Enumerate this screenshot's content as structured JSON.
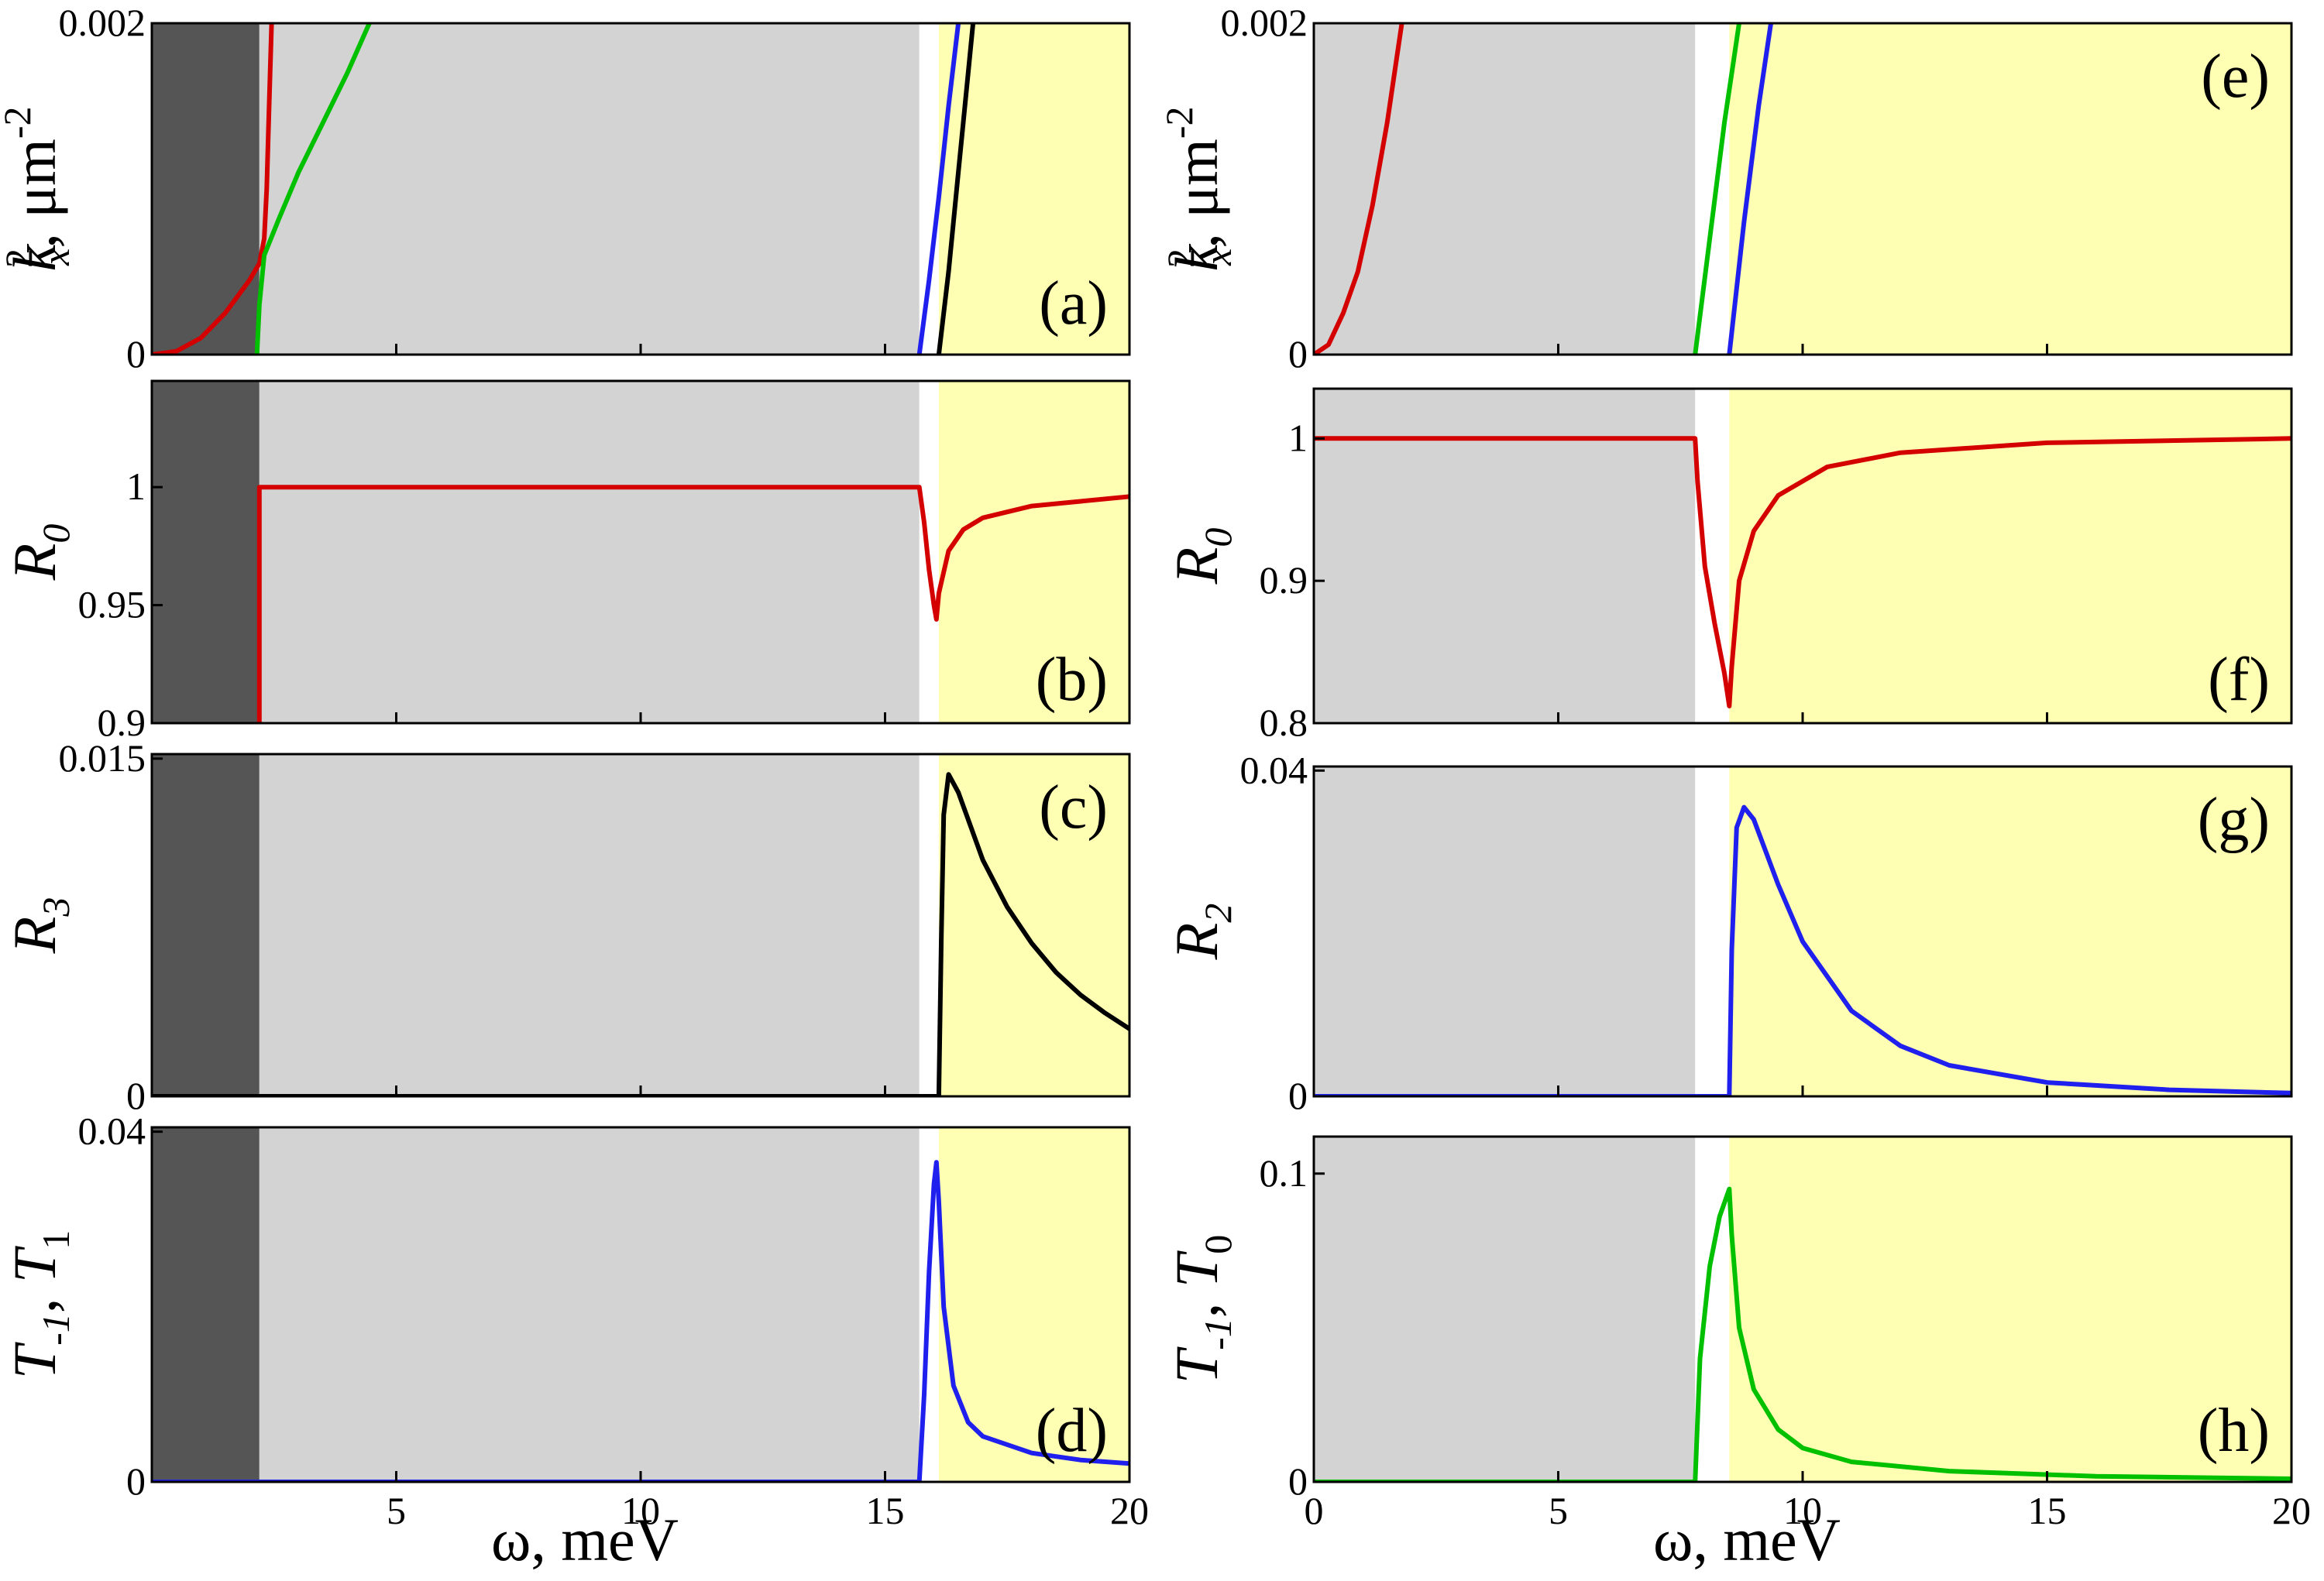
{
  "colors": {
    "dark_region": "#555555",
    "gray_region": "#d3d3d3",
    "yellow_region": "#ffffb4",
    "red": "#d40000",
    "green": "#00c000",
    "blue": "#2020ee",
    "black": "#000000"
  },
  "xlabel": "ω, meV",
  "chart_data": [
    {
      "panel": "(a)",
      "type": "line",
      "ylabel": "k²ₓ, μm⁻²",
      "ylabel_parts": {
        "base": "k",
        "sup": "2",
        "sub": "x",
        "rest": ", μm",
        "rest_sup": "-2"
      },
      "xlim": [
        0,
        20
      ],
      "ylim": [
        0,
        0.002
      ],
      "yticks": [
        0,
        0.002
      ],
      "ytick_labels": [
        "0",
        "0.002"
      ],
      "xticks": [
        5,
        10,
        15,
        20
      ],
      "show_xtick_labels": false,
      "regions": {
        "dark": [
          0,
          2.2
        ],
        "gray": [
          2.2,
          15.7
        ],
        "yellow": [
          16.1,
          20
        ]
      },
      "series": [
        {
          "name": "red",
          "color": "red",
          "points": [
            [
              0,
              0
            ],
            [
              0.5,
              2e-05
            ],
            [
              1.0,
              0.0001
            ],
            [
              1.5,
              0.00025
            ],
            [
              2.0,
              0.00045
            ],
            [
              2.2,
              0.00055
            ],
            [
              2.3,
              0.0007
            ],
            [
              2.35,
              0.001
            ],
            [
              2.4,
              0.0015
            ],
            [
              2.45,
              0.002
            ]
          ]
        },
        {
          "name": "green",
          "color": "green",
          "points": [
            [
              2.15,
              0
            ],
            [
              2.2,
              0.0003
            ],
            [
              2.3,
              0.0006
            ],
            [
              2.6,
              0.00082
            ],
            [
              3.0,
              0.0011
            ],
            [
              3.5,
              0.0014
            ],
            [
              4.0,
              0.0017
            ],
            [
              4.3,
              0.0019
            ],
            [
              4.45,
              0.002
            ]
          ]
        },
        {
          "name": "blue",
          "color": "blue",
          "points": [
            [
              15.7,
              0
            ],
            [
              15.9,
              0.00045
            ],
            [
              16.1,
              0.00095
            ],
            [
              16.3,
              0.0015
            ],
            [
              16.5,
              0.002
            ]
          ]
        },
        {
          "name": "black",
          "color": "black",
          "points": [
            [
              16.1,
              0
            ],
            [
              16.3,
              0.0005
            ],
            [
              16.5,
              0.0011
            ],
            [
              16.7,
              0.0017
            ],
            [
              16.8,
              0.002
            ]
          ]
        }
      ]
    },
    {
      "panel": "(b)",
      "type": "line",
      "ylabel": "R₀",
      "ylabel_parts": {
        "base": "R",
        "sub": "0"
      },
      "xlim": [
        0,
        20
      ],
      "ylim": [
        0.9,
        1.045
      ],
      "yticks": [
        0.9,
        0.95,
        1
      ],
      "ytick_labels": [
        "0.9",
        "0.95",
        "1"
      ],
      "xticks": [
        5,
        10,
        15,
        20
      ],
      "show_xtick_labels": false,
      "regions": {
        "dark": [
          0,
          2.2
        ],
        "gray": [
          2.2,
          15.7
        ],
        "yellow": [
          16.1,
          20
        ]
      },
      "series": [
        {
          "name": "R0",
          "color": "red",
          "points": [
            [
              2.2,
              0.9
            ],
            [
              2.2,
              1.0
            ],
            [
              15.7,
              1.0
            ],
            [
              15.8,
              0.985
            ],
            [
              15.9,
              0.965
            ],
            [
              16.0,
              0.95
            ],
            [
              16.05,
              0.944
            ],
            [
              16.1,
              0.955
            ],
            [
              16.3,
              0.973
            ],
            [
              16.6,
              0.982
            ],
            [
              17.0,
              0.987
            ],
            [
              18.0,
              0.992
            ],
            [
              19.0,
              0.994
            ],
            [
              20.0,
              0.996
            ]
          ]
        }
      ]
    },
    {
      "panel": "(c)",
      "type": "line",
      "ylabel": "R₃",
      "ylabel_parts": {
        "base": "R",
        "sub": "3"
      },
      "xlim": [
        0,
        20
      ],
      "ylim": [
        0,
        0.0152
      ],
      "yticks": [
        0,
        0.015
      ],
      "ytick_labels": [
        "0",
        "0.015"
      ],
      "xticks": [
        5,
        10,
        15,
        20
      ],
      "show_xtick_labels": false,
      "regions": {
        "dark": [
          0,
          2.2
        ],
        "gray": [
          2.2,
          15.7
        ],
        "yellow": [
          16.1,
          20
        ]
      },
      "series": [
        {
          "name": "R3",
          "color": "black",
          "points": [
            [
              0,
              0
            ],
            [
              16.1,
              0
            ],
            [
              16.15,
              0.007
            ],
            [
              16.2,
              0.0125
            ],
            [
              16.3,
              0.0143
            ],
            [
              16.5,
              0.0135
            ],
            [
              17.0,
              0.0105
            ],
            [
              17.5,
              0.0084
            ],
            [
              18.0,
              0.0068
            ],
            [
              18.5,
              0.0055
            ],
            [
              19.0,
              0.0045
            ],
            [
              19.5,
              0.0037
            ],
            [
              20.0,
              0.003
            ]
          ]
        }
      ]
    },
    {
      "panel": "(d)",
      "type": "line",
      "ylabel": "T₋₁, T₁",
      "ylabel_parts": {
        "base": "T",
        "sub": "-1",
        "mid": ", T",
        "sub2": "1"
      },
      "xlim": [
        0,
        20
      ],
      "ylim": [
        0,
        0.0405
      ],
      "yticks": [
        0,
        0.04
      ],
      "ytick_labels": [
        "0",
        "0.04"
      ],
      "xticks": [
        5,
        10,
        15,
        20
      ],
      "show_xtick_labels": true,
      "xtick_labels": [
        "5",
        "10",
        "15",
        "20"
      ],
      "regions": {
        "dark": [
          0,
          2.2
        ],
        "gray": [
          2.2,
          15.7
        ],
        "yellow": [
          16.1,
          20
        ]
      },
      "series": [
        {
          "name": "T",
          "color": "blue",
          "points": [
            [
              0,
              0
            ],
            [
              15.7,
              0
            ],
            [
              15.8,
              0.01
            ],
            [
              15.9,
              0.024
            ],
            [
              16.0,
              0.034
            ],
            [
              16.05,
              0.0365
            ],
            [
              16.1,
              0.032
            ],
            [
              16.2,
              0.02
            ],
            [
              16.4,
              0.011
            ],
            [
              16.7,
              0.0068
            ],
            [
              17.0,
              0.0052
            ],
            [
              18.0,
              0.0033
            ],
            [
              19.0,
              0.0025
            ],
            [
              20.0,
              0.0021
            ]
          ]
        }
      ]
    },
    {
      "panel": "(e)",
      "type": "line",
      "ylabel": "k²ₓ, μm⁻²",
      "ylabel_parts": {
        "base": "k",
        "sup": "2",
        "sub": "x",
        "rest": ", μm",
        "rest_sup": "-2"
      },
      "xlim": [
        0,
        20
      ],
      "ylim": [
        0,
        0.002
      ],
      "yticks": [
        0,
        0.002
      ],
      "ytick_labels": [
        "0",
        "0.002"
      ],
      "xticks": [
        0,
        5,
        10,
        15,
        20
      ],
      "show_xtick_labels": false,
      "regions": {
        "gray": [
          0,
          7.8
        ],
        "yellow": [
          8.5,
          20
        ]
      },
      "series": [
        {
          "name": "red",
          "color": "red",
          "points": [
            [
              0,
              0
            ],
            [
              0.3,
              6e-05
            ],
            [
              0.6,
              0.00025
            ],
            [
              0.9,
              0.0005
            ],
            [
              1.2,
              0.0009
            ],
            [
              1.5,
              0.0014
            ],
            [
              1.8,
              0.002
            ]
          ]
        },
        {
          "name": "green",
          "color": "green",
          "points": [
            [
              7.8,
              0
            ],
            [
              8.1,
              0.0007
            ],
            [
              8.4,
              0.0014
            ],
            [
              8.6,
              0.0018
            ],
            [
              8.7,
              0.002
            ]
          ]
        },
        {
          "name": "blue",
          "color": "blue",
          "points": [
            [
              8.5,
              0
            ],
            [
              8.8,
              0.0008
            ],
            [
              9.1,
              0.0015
            ],
            [
              9.35,
              0.002
            ]
          ]
        }
      ]
    },
    {
      "panel": "(f)",
      "type": "line",
      "ylabel": "R₀",
      "ylabel_parts": {
        "base": "R",
        "sub": "0"
      },
      "xlim": [
        0,
        20
      ],
      "ylim": [
        0.8,
        1.035
      ],
      "yticks": [
        0.8,
        0.9,
        1
      ],
      "ytick_labels": [
        "0.8",
        "0.9",
        "1"
      ],
      "xticks": [
        0,
        5,
        10,
        15,
        20
      ],
      "show_xtick_labels": false,
      "regions": {
        "gray": [
          0,
          7.8
        ],
        "yellow": [
          8.5,
          20
        ]
      },
      "series": [
        {
          "name": "R0",
          "color": "red",
          "points": [
            [
              0,
              1.0
            ],
            [
              7.8,
              1.0
            ],
            [
              7.85,
              0.97
            ],
            [
              8.0,
              0.91
            ],
            [
              8.2,
              0.87
            ],
            [
              8.4,
              0.835
            ],
            [
              8.5,
              0.812
            ],
            [
              8.55,
              0.84
            ],
            [
              8.7,
              0.9
            ],
            [
              9.0,
              0.935
            ],
            [
              9.5,
              0.96
            ],
            [
              10.5,
              0.98
            ],
            [
              12.0,
              0.99
            ],
            [
              15.0,
              0.997
            ],
            [
              20.0,
              1.0
            ]
          ]
        }
      ]
    },
    {
      "panel": "(g)",
      "type": "line",
      "ylabel": "R₂",
      "ylabel_parts": {
        "base": "R",
        "sub": "2"
      },
      "xlim": [
        0,
        20
      ],
      "ylim": [
        0,
        0.0405
      ],
      "yticks": [
        0,
        0.04
      ],
      "ytick_labels": [
        "0",
        "0.04"
      ],
      "xticks": [
        0,
        5,
        10,
        15,
        20
      ],
      "show_xtick_labels": false,
      "regions": {
        "gray": [
          0,
          7.8
        ],
        "yellow": [
          8.5,
          20
        ]
      },
      "series": [
        {
          "name": "R2",
          "color": "blue",
          "points": [
            [
              0,
              0
            ],
            [
              8.5,
              0
            ],
            [
              8.55,
              0.018
            ],
            [
              8.65,
              0.033
            ],
            [
              8.8,
              0.0355
            ],
            [
              9.0,
              0.034
            ],
            [
              9.5,
              0.026
            ],
            [
              10.0,
              0.019
            ],
            [
              11.0,
              0.0105
            ],
            [
              12.0,
              0.0062
            ],
            [
              13.0,
              0.0038
            ],
            [
              15.0,
              0.0017
            ],
            [
              17.5,
              0.0008
            ],
            [
              20.0,
              0.0004
            ]
          ]
        }
      ]
    },
    {
      "panel": "(h)",
      "type": "line",
      "ylabel": "T₋₁, T₀",
      "ylabel_parts": {
        "base": "T",
        "sub": "-1",
        "mid": ", T",
        "sub2": "0"
      },
      "xlim": [
        0,
        20
      ],
      "ylim": [
        0,
        0.112
      ],
      "yticks": [
        0,
        0.1
      ],
      "ytick_labels": [
        "0",
        "0.1"
      ],
      "xticks": [
        0,
        5,
        10,
        15,
        20
      ],
      "show_xtick_labels": true,
      "xtick_labels": [
        "0",
        "5",
        "10",
        "15",
        "20"
      ],
      "regions": {
        "gray": [
          0,
          7.8
        ],
        "yellow": [
          8.5,
          20
        ]
      },
      "series": [
        {
          "name": "T",
          "color": "green",
          "points": [
            [
              0,
              0
            ],
            [
              7.8,
              0
            ],
            [
              7.9,
              0.04
            ],
            [
              8.1,
              0.07
            ],
            [
              8.3,
              0.086
            ],
            [
              8.5,
              0.095
            ],
            [
              8.55,
              0.08
            ],
            [
              8.7,
              0.05
            ],
            [
              9.0,
              0.03
            ],
            [
              9.5,
              0.017
            ],
            [
              10.0,
              0.011
            ],
            [
              11.0,
              0.0065
            ],
            [
              13.0,
              0.0035
            ],
            [
              16.0,
              0.0018
            ],
            [
              20.0,
              0.001
            ]
          ]
        }
      ]
    }
  ]
}
